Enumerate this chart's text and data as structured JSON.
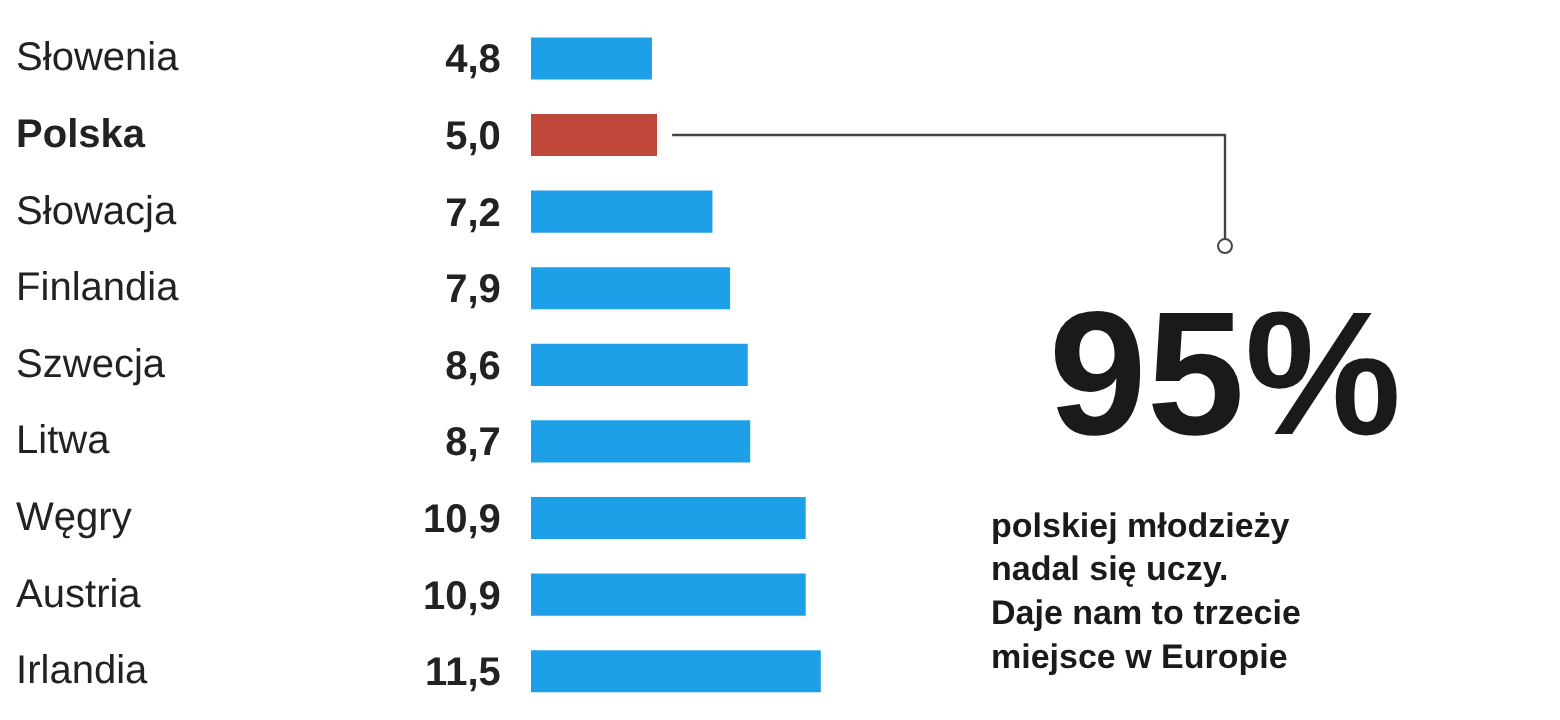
{
  "chart_data": {
    "type": "bar",
    "orientation": "horizontal",
    "categories": [
      "Słowenia",
      "Polska",
      "Słowacja",
      "Finlandia",
      "Szwecja",
      "Litwa",
      "Węgry",
      "Austria",
      "Irlandia"
    ],
    "values": [
      4.8,
      5.0,
      7.2,
      7.9,
      8.6,
      8.7,
      10.9,
      10.9,
      11.5
    ],
    "value_labels": [
      "4,8",
      "5,0",
      "7,2",
      "7,9",
      "8,6",
      "8,7",
      "10,9",
      "10,9",
      "11,5"
    ],
    "colors": [
      "#1ea0e8",
      "#c0483a",
      "#1ea0e8",
      "#1ea0e8",
      "#1ea0e8",
      "#1ea0e8",
      "#1ea0e8",
      "#1ea0e8",
      "#1ea0e8"
    ],
    "annotations": [
      {
        "text": "95%",
        "x": 5.0,
        "y": "Polska"
      },
      "polskiej młodzieży\nnadal się uczy.\nDaje nam to trzecie\nmiejsce w Europie"
    ]
  }
}
